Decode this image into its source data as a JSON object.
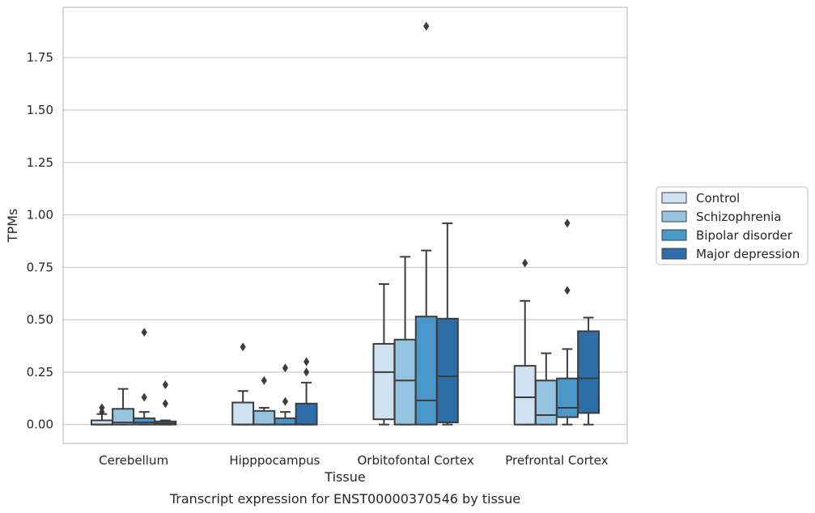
{
  "chart_data": {
    "type": "box",
    "caption": "Transcript expression for ENST00000370546 by tissue",
    "xlabel": "Tissue",
    "ylabel": "TPMs",
    "ylim": [
      -0.09,
      1.99
    ],
    "yticks": [
      0.0,
      0.25,
      0.5,
      0.75,
      1.0,
      1.25,
      1.5,
      1.75
    ],
    "ytick_labels": [
      "0.00",
      "0.25",
      "0.50",
      "0.75",
      "1.00",
      "1.25",
      "1.50",
      "1.75"
    ],
    "grid": "horizontal",
    "legend_position": "right",
    "categories": [
      "Cerebellum",
      "Hipppocampus",
      "Orbitofontal Cortex",
      "Prefrontal Cortex"
    ],
    "series": [
      {
        "name": "Control",
        "color": "#d0e1f2",
        "boxes": [
          {
            "whislo": 0.0,
            "q1": 0.0,
            "med": 0.0,
            "q3": 0.02,
            "whishi": 0.05,
            "fliers": [
              0.06,
              0.08
            ]
          },
          {
            "whislo": 0.0,
            "q1": 0.0,
            "med": 0.0,
            "q3": 0.105,
            "whishi": 0.16,
            "fliers": [
              0.37
            ]
          },
          {
            "whislo": 0.0,
            "q1": 0.025,
            "med": 0.25,
            "q3": 0.385,
            "whishi": 0.67,
            "fliers": []
          },
          {
            "whislo": 0.0,
            "q1": 0.0,
            "med": 0.13,
            "q3": 0.28,
            "whishi": 0.59,
            "fliers": [
              0.77
            ]
          }
        ]
      },
      {
        "name": "Schizophrenia",
        "color": "#94c4df",
        "boxes": [
          {
            "whislo": 0.0,
            "q1": 0.0,
            "med": 0.01,
            "q3": 0.075,
            "whishi": 0.17,
            "fliers": []
          },
          {
            "whislo": 0.0,
            "q1": 0.0,
            "med": 0.0,
            "q3": 0.065,
            "whishi": 0.08,
            "fliers": [
              0.21
            ]
          },
          {
            "whislo": 0.0,
            "q1": 0.0,
            "med": 0.21,
            "q3": 0.405,
            "whishi": 0.8,
            "fliers": []
          },
          {
            "whislo": 0.0,
            "q1": 0.0,
            "med": 0.045,
            "q3": 0.21,
            "whishi": 0.34,
            "fliers": []
          }
        ]
      },
      {
        "name": "Bipolar disorder",
        "color": "#4a98c9",
        "boxes": [
          {
            "whislo": 0.0,
            "q1": 0.0,
            "med": 0.01,
            "q3": 0.03,
            "whishi": 0.06,
            "fliers": [
              0.13,
              0.44
            ]
          },
          {
            "whislo": 0.0,
            "q1": 0.0,
            "med": 0.0,
            "q3": 0.03,
            "whishi": 0.06,
            "fliers": [
              0.11,
              0.27
            ]
          },
          {
            "whislo": 0.0,
            "q1": 0.0,
            "med": 0.115,
            "q3": 0.515,
            "whishi": 0.83,
            "fliers": [
              1.9
            ]
          },
          {
            "whislo": 0.0,
            "q1": 0.035,
            "med": 0.08,
            "q3": 0.22,
            "whishi": 0.36,
            "fliers": [
              0.64,
              0.96
            ]
          }
        ]
      },
      {
        "name": "Major depression",
        "color": "#2e6ea8",
        "boxes": [
          {
            "whislo": 0.0,
            "q1": 0.0,
            "med": 0.005,
            "q3": 0.015,
            "whishi": 0.02,
            "fliers": [
              0.1,
              0.19
            ]
          },
          {
            "whislo": 0.0,
            "q1": 0.0,
            "med": 0.0,
            "q3": 0.1,
            "whishi": 0.2,
            "fliers": [
              0.25,
              0.3
            ]
          },
          {
            "whislo": 0.0,
            "q1": 0.01,
            "med": 0.23,
            "q3": 0.505,
            "whishi": 0.96,
            "fliers": []
          },
          {
            "whislo": 0.0,
            "q1": 0.055,
            "med": 0.22,
            "q3": 0.445,
            "whishi": 0.51,
            "fliers": []
          }
        ]
      }
    ]
  }
}
